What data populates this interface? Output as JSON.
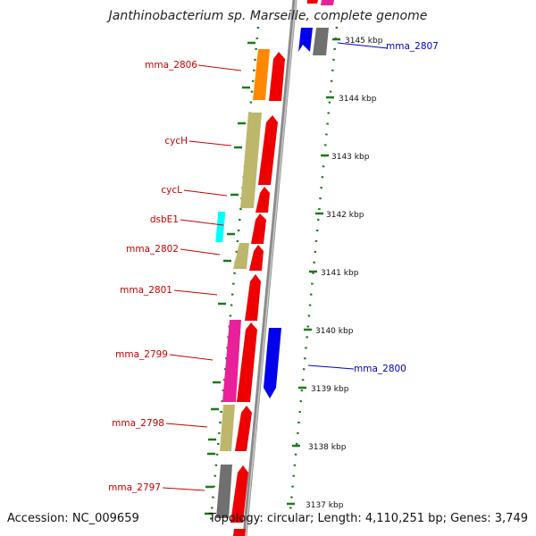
{
  "title": "Janthinobacterium sp. Marseille, complete genome",
  "footer": {
    "accession": "Accession: NC_009659",
    "topology": "Topology: circular; Length: 4,110,251 bp; Genes: 3,749"
  },
  "colors": {
    "label_red": "#cc0000",
    "label_blue": "#0000cc",
    "backbone": "#888888",
    "tick_green": "#1a7a1a"
  },
  "ticks": [
    "3145 kbp",
    "3144 kbp",
    "3143 kbp",
    "3142 kbp",
    "3141 kbp",
    "3140 kbp",
    "3139 kbp",
    "3138 kbp",
    "3137 kbp"
  ],
  "gene_labels": [
    "mma_2807",
    "mma_2806",
    "cycH",
    "cycL",
    "dsbE1",
    "mma_2802",
    "mma_2801",
    "mma_2800",
    "mma_2799",
    "mma_2798",
    "mma_2797"
  ]
}
